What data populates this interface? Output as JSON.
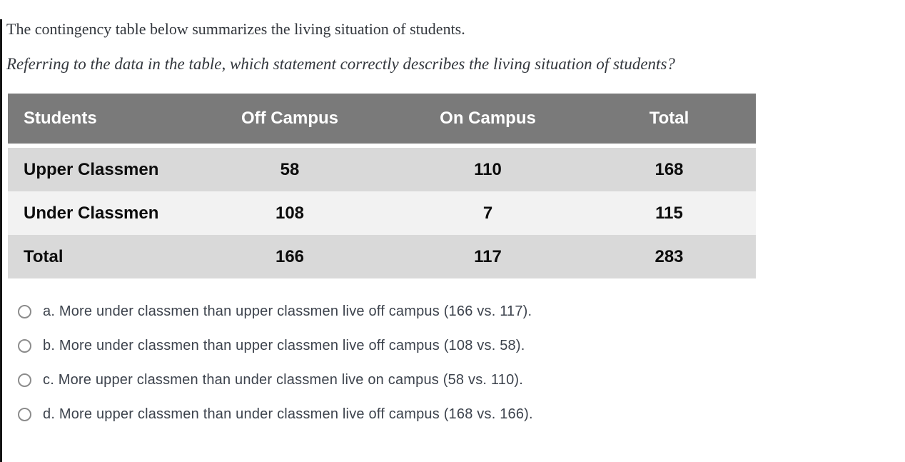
{
  "colors": {
    "table_header_bg": "#7a7a7a",
    "table_header_text": "#ffffff",
    "table_row_odd_bg": "#d9d9d9",
    "table_row_even_bg": "#f2f2f2",
    "table_cell_text": "#0d0d0d",
    "body_text": "#33373d",
    "option_text": "#3d434d",
    "radio_border": "#8c8c8c",
    "page_left_border": "#141414"
  },
  "question": {
    "intro": "The contingency table below summarizes the living situation of students.",
    "prompt": "Referring to the data in the table, which statement correctly describes the living situation of students?"
  },
  "table": {
    "headers": [
      "Students",
      "Off Campus",
      "On Campus",
      "Total"
    ],
    "rows": [
      {
        "label": "Upper Classmen",
        "values": [
          "58",
          "110",
          "168"
        ]
      },
      {
        "label": "Under Classmen",
        "values": [
          "108",
          "7",
          "115"
        ]
      },
      {
        "label": "Total",
        "values": [
          "166",
          "117",
          "283"
        ]
      }
    ]
  },
  "options": [
    {
      "id": "a",
      "selected": false,
      "label": "a. More under classmen than upper classmen live off campus (166 vs. 117)."
    },
    {
      "id": "b",
      "selected": false,
      "label": "b. More under classmen than upper classmen live off campus (108 vs. 58)."
    },
    {
      "id": "c",
      "selected": false,
      "label": "c. More upper classmen than under classmen live on campus (58 vs. 110)."
    },
    {
      "id": "d",
      "selected": false,
      "label": "d. More upper classmen than under classmen live off campus (168 vs. 166)."
    }
  ]
}
